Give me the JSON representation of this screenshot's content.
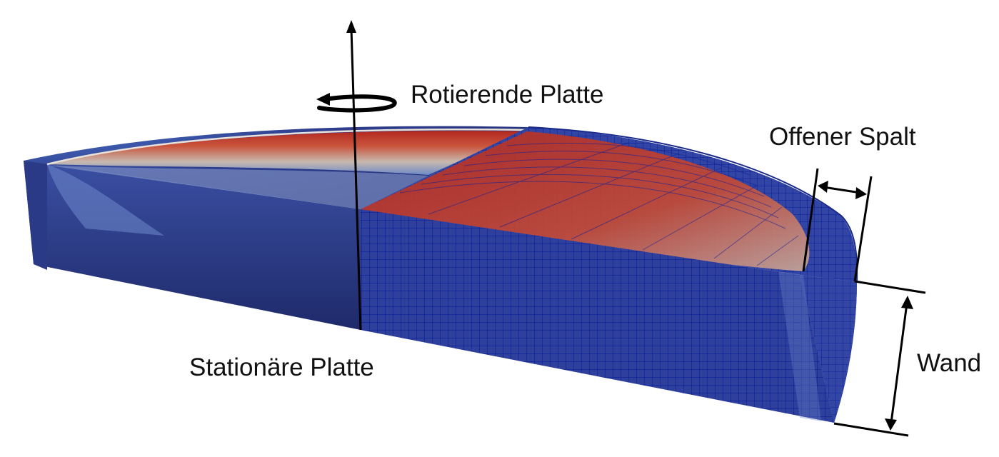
{
  "labels": {
    "rotating_plate": "Rotierende Platte",
    "open_gap": "Offener Spalt",
    "stationary_plate": "Stationäre Platte",
    "wall": "Wand"
  },
  "colors": {
    "hot": "#b3281f",
    "mid": "#c9b8a6",
    "cold": "#2f3f8f",
    "dark_blue": "#1f2b6b",
    "mesh_line": "#0b1f9a",
    "annotation": "#000000"
  }
}
